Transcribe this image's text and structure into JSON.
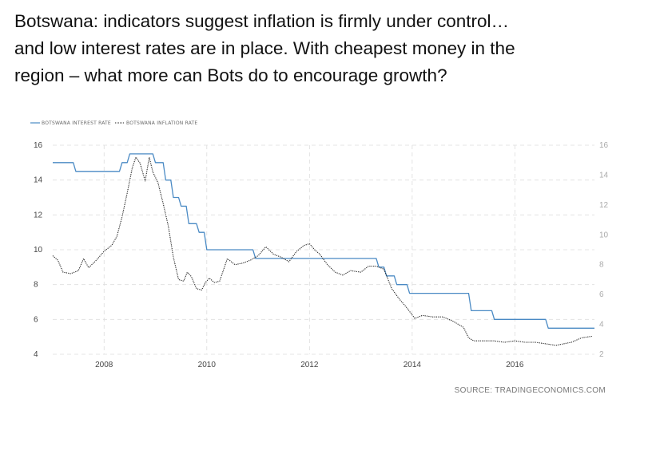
{
  "slide": {
    "title_line1": "Botswana: indicators suggest inflation is firmly under control…",
    "title_line2": "and low interest rates are in place. With cheapest money in the",
    "title_line3": "region – what more can Bots do to encourage growth?"
  },
  "chart_data": {
    "type": "line",
    "title": "",
    "source": "SOURCE: TRADINGECONOMICS.COM",
    "legend_position": "top-left",
    "grid": true,
    "x_ticks": [
      2008,
      2010,
      2012,
      2014,
      2016
    ],
    "x_range": [
      2007.0,
      2017.55
    ],
    "y_left": {
      "range": [
        4,
        16
      ],
      "ticks": [
        4,
        6,
        8,
        10,
        12,
        14,
        16
      ]
    },
    "y_right": {
      "range": [
        2,
        16
      ],
      "ticks": [
        2,
        4,
        6,
        8,
        10,
        12,
        14,
        16
      ]
    },
    "series": [
      {
        "name": "BOTSWANA INTEREST RATE",
        "axis": "left",
        "style": "solid",
        "color": "#4a8ac4",
        "x": [
          2007.0,
          2007.4,
          2007.45,
          2008.3,
          2008.35,
          2008.45,
          2008.5,
          2008.95,
          2009.0,
          2009.15,
          2009.2,
          2009.3,
          2009.35,
          2009.45,
          2009.5,
          2009.6,
          2009.65,
          2009.8,
          2009.85,
          2009.95,
          2010.0,
          2010.9,
          2010.95,
          2013.3,
          2013.35,
          2013.45,
          2013.5,
          2013.65,
          2013.7,
          2013.9,
          2013.95,
          2015.1,
          2015.15,
          2015.55,
          2015.6,
          2016.6,
          2016.65,
          2017.55
        ],
        "y": [
          15.0,
          15.0,
          14.5,
          14.5,
          15.0,
          15.0,
          15.5,
          15.5,
          15.0,
          15.0,
          14.0,
          14.0,
          13.0,
          13.0,
          12.5,
          12.5,
          11.5,
          11.5,
          11.0,
          11.0,
          10.0,
          10.0,
          9.5,
          9.5,
          9.0,
          9.0,
          8.5,
          8.5,
          8.0,
          8.0,
          7.5,
          7.5,
          6.5,
          6.5,
          6.0,
          6.0,
          5.5,
          5.5
        ]
      },
      {
        "name": "BOTSWANA INFLATION RATE",
        "axis": "right",
        "style": "dotted",
        "color": "#222222",
        "x": [
          2007.0,
          2007.1,
          2007.2,
          2007.35,
          2007.5,
          2007.6,
          2007.7,
          2007.85,
          2008.0,
          2008.15,
          2008.25,
          2008.35,
          2008.45,
          2008.55,
          2008.62,
          2008.7,
          2008.8,
          2008.88,
          2008.95,
          2009.05,
          2009.15,
          2009.25,
          2009.35,
          2009.45,
          2009.55,
          2009.62,
          2009.7,
          2009.8,
          2009.9,
          2009.97,
          2010.05,
          2010.15,
          2010.25,
          2010.4,
          2010.55,
          2010.7,
          2010.85,
          2011.0,
          2011.15,
          2011.3,
          2011.45,
          2011.6,
          2011.75,
          2011.9,
          2012.0,
          2012.1,
          2012.2,
          2012.35,
          2012.5,
          2012.65,
          2012.8,
          2013.0,
          2013.15,
          2013.3,
          2013.45,
          2013.6,
          2013.75,
          2013.9,
          2014.05,
          2014.2,
          2014.4,
          2014.6,
          2014.8,
          2015.0,
          2015.1,
          2015.2,
          2015.4,
          2015.6,
          2015.8,
          2016.0,
          2016.2,
          2016.4,
          2016.6,
          2016.8,
          2016.95,
          2017.1,
          2017.3,
          2017.5
        ],
        "y": [
          8.6,
          8.3,
          7.5,
          7.4,
          7.6,
          8.4,
          7.8,
          8.3,
          8.9,
          9.3,
          9.9,
          11.2,
          12.8,
          14.5,
          15.2,
          14.8,
          13.6,
          15.2,
          14.2,
          13.5,
          12.1,
          10.6,
          8.5,
          7.0,
          6.9,
          7.5,
          7.2,
          6.4,
          6.3,
          6.8,
          7.1,
          6.8,
          6.9,
          8.4,
          8.0,
          8.1,
          8.3,
          8.6,
          9.2,
          8.7,
          8.5,
          8.2,
          8.9,
          9.3,
          9.4,
          9.0,
          8.7,
          8.0,
          7.5,
          7.3,
          7.6,
          7.5,
          7.9,
          7.9,
          7.7,
          6.4,
          5.7,
          5.1,
          4.4,
          4.6,
          4.5,
          4.5,
          4.2,
          3.8,
          3.1,
          2.9,
          2.9,
          2.9,
          2.8,
          2.9,
          2.8,
          2.8,
          2.7,
          2.6,
          2.7,
          2.8,
          3.1,
          3.2
        ]
      }
    ]
  }
}
